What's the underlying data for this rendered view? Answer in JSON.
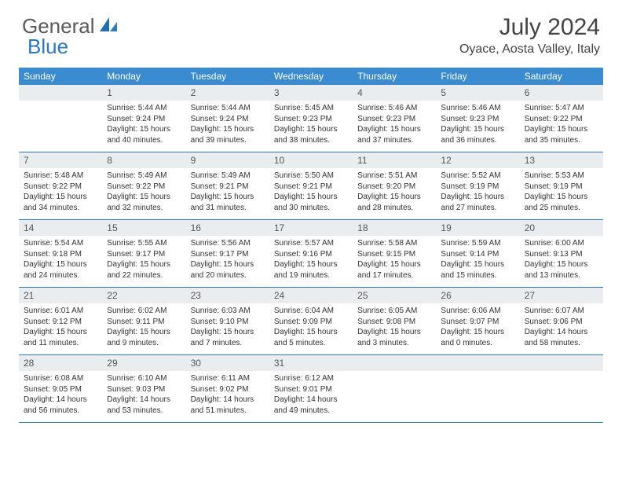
{
  "brand": {
    "part1": "General",
    "part2": "Blue"
  },
  "title": "July 2024",
  "location": "Oyace, Aosta Valley, Italy",
  "colors": {
    "header_bg": "#3b8bd0",
    "header_text": "#ffffff",
    "daynum_bg": "#e9edf0",
    "week_border": "#2b79c2",
    "brand_blue": "#2b79c2",
    "body_text": "#333333"
  },
  "weekdays": [
    "Sunday",
    "Monday",
    "Tuesday",
    "Wednesday",
    "Thursday",
    "Friday",
    "Saturday"
  ],
  "weeks": [
    {
      "nums": [
        "",
        "1",
        "2",
        "3",
        "4",
        "5",
        "6"
      ],
      "data": [
        null,
        {
          "sunrise": "5:44 AM",
          "sunset": "9:24 PM",
          "dayh": 15,
          "daym": 40
        },
        {
          "sunrise": "5:44 AM",
          "sunset": "9:24 PM",
          "dayh": 15,
          "daym": 39
        },
        {
          "sunrise": "5:45 AM",
          "sunset": "9:23 PM",
          "dayh": 15,
          "daym": 38
        },
        {
          "sunrise": "5:46 AM",
          "sunset": "9:23 PM",
          "dayh": 15,
          "daym": 37
        },
        {
          "sunrise": "5:46 AM",
          "sunset": "9:23 PM",
          "dayh": 15,
          "daym": 36
        },
        {
          "sunrise": "5:47 AM",
          "sunset": "9:22 PM",
          "dayh": 15,
          "daym": 35
        }
      ]
    },
    {
      "nums": [
        "7",
        "8",
        "9",
        "10",
        "11",
        "12",
        "13"
      ],
      "data": [
        {
          "sunrise": "5:48 AM",
          "sunset": "9:22 PM",
          "dayh": 15,
          "daym": 34
        },
        {
          "sunrise": "5:49 AM",
          "sunset": "9:22 PM",
          "dayh": 15,
          "daym": 32
        },
        {
          "sunrise": "5:49 AM",
          "sunset": "9:21 PM",
          "dayh": 15,
          "daym": 31
        },
        {
          "sunrise": "5:50 AM",
          "sunset": "9:21 PM",
          "dayh": 15,
          "daym": 30
        },
        {
          "sunrise": "5:51 AM",
          "sunset": "9:20 PM",
          "dayh": 15,
          "daym": 28
        },
        {
          "sunrise": "5:52 AM",
          "sunset": "9:19 PM",
          "dayh": 15,
          "daym": 27
        },
        {
          "sunrise": "5:53 AM",
          "sunset": "9:19 PM",
          "dayh": 15,
          "daym": 25
        }
      ]
    },
    {
      "nums": [
        "14",
        "15",
        "16",
        "17",
        "18",
        "19",
        "20"
      ],
      "data": [
        {
          "sunrise": "5:54 AM",
          "sunset": "9:18 PM",
          "dayh": 15,
          "daym": 24
        },
        {
          "sunrise": "5:55 AM",
          "sunset": "9:17 PM",
          "dayh": 15,
          "daym": 22
        },
        {
          "sunrise": "5:56 AM",
          "sunset": "9:17 PM",
          "dayh": 15,
          "daym": 20
        },
        {
          "sunrise": "5:57 AM",
          "sunset": "9:16 PM",
          "dayh": 15,
          "daym": 19
        },
        {
          "sunrise": "5:58 AM",
          "sunset": "9:15 PM",
          "dayh": 15,
          "daym": 17
        },
        {
          "sunrise": "5:59 AM",
          "sunset": "9:14 PM",
          "dayh": 15,
          "daym": 15
        },
        {
          "sunrise": "6:00 AM",
          "sunset": "9:13 PM",
          "dayh": 15,
          "daym": 13
        }
      ]
    },
    {
      "nums": [
        "21",
        "22",
        "23",
        "24",
        "25",
        "26",
        "27"
      ],
      "data": [
        {
          "sunrise": "6:01 AM",
          "sunset": "9:12 PM",
          "dayh": 15,
          "daym": 11
        },
        {
          "sunrise": "6:02 AM",
          "sunset": "9:11 PM",
          "dayh": 15,
          "daym": 9
        },
        {
          "sunrise": "6:03 AM",
          "sunset": "9:10 PM",
          "dayh": 15,
          "daym": 7
        },
        {
          "sunrise": "6:04 AM",
          "sunset": "9:09 PM",
          "dayh": 15,
          "daym": 5
        },
        {
          "sunrise": "6:05 AM",
          "sunset": "9:08 PM",
          "dayh": 15,
          "daym": 3
        },
        {
          "sunrise": "6:06 AM",
          "sunset": "9:07 PM",
          "dayh": 15,
          "daym": 0
        },
        {
          "sunrise": "6:07 AM",
          "sunset": "9:06 PM",
          "dayh": 14,
          "daym": 58
        }
      ]
    },
    {
      "nums": [
        "28",
        "29",
        "30",
        "31",
        "",
        "",
        ""
      ],
      "data": [
        {
          "sunrise": "6:08 AM",
          "sunset": "9:05 PM",
          "dayh": 14,
          "daym": 56
        },
        {
          "sunrise": "6:10 AM",
          "sunset": "9:03 PM",
          "dayh": 14,
          "daym": 53
        },
        {
          "sunrise": "6:11 AM",
          "sunset": "9:02 PM",
          "dayh": 14,
          "daym": 51
        },
        {
          "sunrise": "6:12 AM",
          "sunset": "9:01 PM",
          "dayh": 14,
          "daym": 49
        },
        null,
        null,
        null
      ]
    }
  ],
  "labels": {
    "sunrise_prefix": "Sunrise: ",
    "sunset_prefix": "Sunset: ",
    "daylight_prefix": "Daylight: ",
    "hours_word": " hours",
    "and_word": "and ",
    "minutes_word": " minutes."
  }
}
